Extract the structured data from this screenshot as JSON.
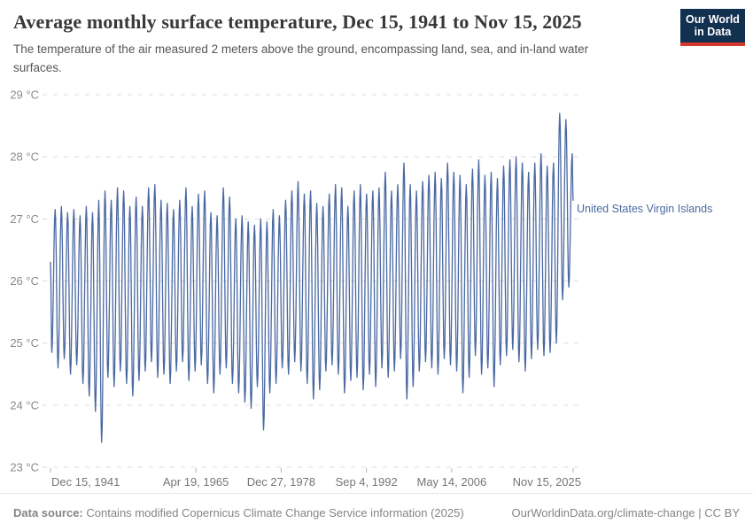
{
  "header": {
    "title": "Average monthly surface temperature, Dec 15, 1941 to Nov 15, 2025",
    "subtitle": "The temperature of the air measured 2 meters above the ground, encompassing land, sea, and in-land water surfaces."
  },
  "logo": {
    "line1": "Our World",
    "line2": "in Data",
    "bg_color": "#12304f",
    "bar_color": "#d5382d"
  },
  "footer": {
    "datasource_label": "Data source:",
    "datasource_text": " Contains modified Copernicus Climate Change Service information (2025)",
    "attribution": "OurWorldinData.org/climate-change | CC BY"
  },
  "chart_data": {
    "type": "line",
    "title": "Average monthly surface temperature, Dec 15, 1941 to Nov 15, 2025",
    "unit": "°C",
    "grid": true,
    "legend_position": "right-of-line-end",
    "x_range": [
      1941.96,
      2025.87
    ],
    "y_range": [
      23,
      29
    ],
    "y_ticks": [
      {
        "value": 23,
        "label": "23 °C"
      },
      {
        "value": 24,
        "label": "24 °C"
      },
      {
        "value": 25,
        "label": "25 °C"
      },
      {
        "value": 26,
        "label": "26 °C"
      },
      {
        "value": 27,
        "label": "27 °C"
      },
      {
        "value": 28,
        "label": "28 °C"
      },
      {
        "value": 29,
        "label": "29 °C"
      }
    ],
    "x_ticks": [
      {
        "year": 1941.96,
        "label": "Dec 15, 1941",
        "anchor": "start"
      },
      {
        "year": 1965.3,
        "label": "Apr 19, 1965",
        "anchor": "middle"
      },
      {
        "year": 1978.99,
        "label": "Dec 27, 1978",
        "anchor": "middle"
      },
      {
        "year": 1992.68,
        "label": "Sep 4, 1992",
        "anchor": "middle"
      },
      {
        "year": 2006.37,
        "label": "May 14, 2006",
        "anchor": "middle"
      },
      {
        "year": 2025.87,
        "label": "Nov 15, 2025",
        "anchor": "end"
      }
    ],
    "series": [
      {
        "name": "United States Virgin Islands",
        "color": "#4a69a2",
        "start_point": {
          "year": 1941.96,
          "value": 26.3
        },
        "end_point": {
          "year": 2025.87,
          "value": 27.3
        },
        "seasonal_trough_offset": 0.17,
        "seasonal_peak_offset": 0.71,
        "annual_extremes": [
          {
            "y": 1942,
            "lo": 24.85,
            "hi": 27.15
          },
          {
            "y": 1943,
            "lo": 24.6,
            "hi": 27.2
          },
          {
            "y": 1944,
            "lo": 24.75,
            "hi": 27.1
          },
          {
            "y": 1945,
            "lo": 24.5,
            "hi": 27.15
          },
          {
            "y": 1946,
            "lo": 24.65,
            "hi": 27.05
          },
          {
            "y": 1947,
            "lo": 24.35,
            "hi": 27.2
          },
          {
            "y": 1948,
            "lo": 24.15,
            "hi": 27.1
          },
          {
            "y": 1949,
            "lo": 23.9,
            "hi": 27.3
          },
          {
            "y": 1950,
            "lo": 23.4,
            "hi": 27.45
          },
          {
            "y": 1951,
            "lo": 24.45,
            "hi": 27.3
          },
          {
            "y": 1952,
            "lo": 24.3,
            "hi": 27.5
          },
          {
            "y": 1953,
            "lo": 24.55,
            "hi": 27.45
          },
          {
            "y": 1954,
            "lo": 24.35,
            "hi": 27.2
          },
          {
            "y": 1955,
            "lo": 24.15,
            "hi": 27.35
          },
          {
            "y": 1956,
            "lo": 24.4,
            "hi": 27.2
          },
          {
            "y": 1957,
            "lo": 24.55,
            "hi": 27.5
          },
          {
            "y": 1958,
            "lo": 24.7,
            "hi": 27.55
          },
          {
            "y": 1959,
            "lo": 24.45,
            "hi": 27.3
          },
          {
            "y": 1960,
            "lo": 24.5,
            "hi": 27.25
          },
          {
            "y": 1961,
            "lo": 24.35,
            "hi": 27.15
          },
          {
            "y": 1962,
            "lo": 24.55,
            "hi": 27.3
          },
          {
            "y": 1963,
            "lo": 24.7,
            "hi": 27.5
          },
          {
            "y": 1964,
            "lo": 24.4,
            "hi": 27.2
          },
          {
            "y": 1965,
            "lo": 24.55,
            "hi": 27.4
          },
          {
            "y": 1966,
            "lo": 24.65,
            "hi": 27.45
          },
          {
            "y": 1967,
            "lo": 24.35,
            "hi": 27.1
          },
          {
            "y": 1968,
            "lo": 24.2,
            "hi": 27.05
          },
          {
            "y": 1969,
            "lo": 24.5,
            "hi": 27.5
          },
          {
            "y": 1970,
            "lo": 24.6,
            "hi": 27.35
          },
          {
            "y": 1971,
            "lo": 24.35,
            "hi": 27.0
          },
          {
            "y": 1972,
            "lo": 24.2,
            "hi": 27.05
          },
          {
            "y": 1973,
            "lo": 24.05,
            "hi": 26.95
          },
          {
            "y": 1974,
            "lo": 23.95,
            "hi": 26.9
          },
          {
            "y": 1975,
            "lo": 24.3,
            "hi": 27.0
          },
          {
            "y": 1976,
            "lo": 23.6,
            "hi": 26.95
          },
          {
            "y": 1977,
            "lo": 24.2,
            "hi": 27.15
          },
          {
            "y": 1978,
            "lo": 24.35,
            "hi": 27.05
          },
          {
            "y": 1979,
            "lo": 24.6,
            "hi": 27.3
          },
          {
            "y": 1980,
            "lo": 24.5,
            "hi": 27.45
          },
          {
            "y": 1981,
            "lo": 24.7,
            "hi": 27.6
          },
          {
            "y": 1982,
            "lo": 24.55,
            "hi": 27.4
          },
          {
            "y": 1983,
            "lo": 24.35,
            "hi": 27.45
          },
          {
            "y": 1984,
            "lo": 24.1,
            "hi": 27.25
          },
          {
            "y": 1985,
            "lo": 24.25,
            "hi": 27.2
          },
          {
            "y": 1986,
            "lo": 24.55,
            "hi": 27.4
          },
          {
            "y": 1987,
            "lo": 24.65,
            "hi": 27.55
          },
          {
            "y": 1988,
            "lo": 24.5,
            "hi": 27.5
          },
          {
            "y": 1989,
            "lo": 24.2,
            "hi": 27.2
          },
          {
            "y": 1990,
            "lo": 24.4,
            "hi": 27.45
          },
          {
            "y": 1991,
            "lo": 24.45,
            "hi": 27.55
          },
          {
            "y": 1992,
            "lo": 24.25,
            "hi": 27.4
          },
          {
            "y": 1993,
            "lo": 24.5,
            "hi": 27.45
          },
          {
            "y": 1994,
            "lo": 24.3,
            "hi": 27.5
          },
          {
            "y": 1995,
            "lo": 24.6,
            "hi": 27.75
          },
          {
            "y": 1996,
            "lo": 24.45,
            "hi": 27.45
          },
          {
            "y": 1997,
            "lo": 24.55,
            "hi": 27.55
          },
          {
            "y": 1998,
            "lo": 24.75,
            "hi": 27.9
          },
          {
            "y": 1999,
            "lo": 24.1,
            "hi": 27.55
          },
          {
            "y": 2000,
            "lo": 24.3,
            "hi": 27.45
          },
          {
            "y": 2001,
            "lo": 24.55,
            "hi": 27.6
          },
          {
            "y": 2002,
            "lo": 24.7,
            "hi": 27.7
          },
          {
            "y": 2003,
            "lo": 24.6,
            "hi": 27.75
          },
          {
            "y": 2004,
            "lo": 24.5,
            "hi": 27.65
          },
          {
            "y": 2005,
            "lo": 24.75,
            "hi": 27.9
          },
          {
            "y": 2006,
            "lo": 24.65,
            "hi": 27.75
          },
          {
            "y": 2007,
            "lo": 24.55,
            "hi": 27.7
          },
          {
            "y": 2008,
            "lo": 24.2,
            "hi": 27.55
          },
          {
            "y": 2009,
            "lo": 24.45,
            "hi": 27.8
          },
          {
            "y": 2010,
            "lo": 24.8,
            "hi": 27.95
          },
          {
            "y": 2011,
            "lo": 24.5,
            "hi": 27.7
          },
          {
            "y": 2012,
            "lo": 24.6,
            "hi": 27.75
          },
          {
            "y": 2013,
            "lo": 24.3,
            "hi": 27.65
          },
          {
            "y": 2014,
            "lo": 24.65,
            "hi": 27.85
          },
          {
            "y": 2015,
            "lo": 24.8,
            "hi": 27.95
          },
          {
            "y": 2016,
            "lo": 24.9,
            "hi": 28.0
          },
          {
            "y": 2017,
            "lo": 24.7,
            "hi": 27.9
          },
          {
            "y": 2018,
            "lo": 24.55,
            "hi": 27.75
          },
          {
            "y": 2019,
            "lo": 24.75,
            "hi": 27.9
          },
          {
            "y": 2020,
            "lo": 24.9,
            "hi": 28.05
          },
          {
            "y": 2021,
            "lo": 24.8,
            "hi": 27.85
          },
          {
            "y": 2022,
            "lo": 24.85,
            "hi": 27.9
          },
          {
            "y": 2023,
            "lo": 25.0,
            "hi": 28.7
          },
          {
            "y": 2024,
            "lo": 25.7,
            "hi": 28.6
          },
          {
            "y": 2025,
            "lo": 25.9,
            "hi": 28.05
          }
        ]
      }
    ]
  }
}
